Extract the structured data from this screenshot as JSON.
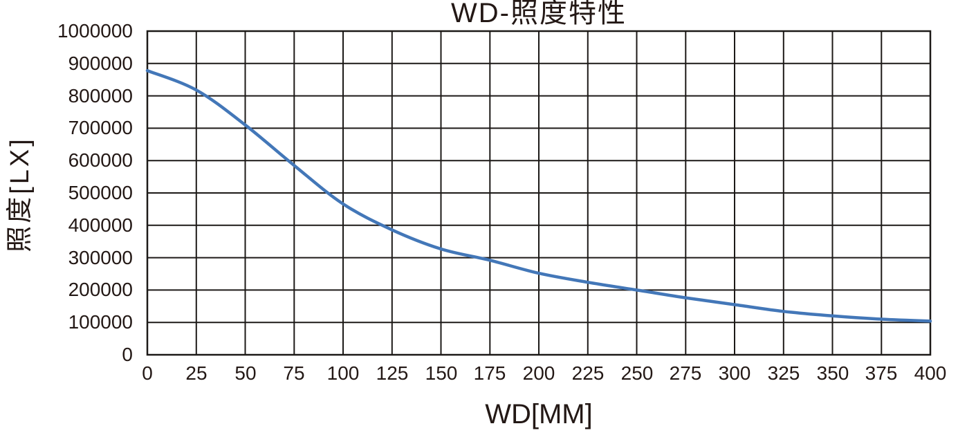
{
  "chart_data": {
    "type": "line",
    "title": "WD-照度特性",
    "xlabel": "WD[MM]",
    "ylabel": "照度[LX]",
    "xlim": [
      0,
      400
    ],
    "ylim": [
      0,
      1000000
    ],
    "x_ticks": [
      0,
      25,
      50,
      75,
      100,
      125,
      150,
      175,
      200,
      225,
      250,
      275,
      300,
      325,
      350,
      375,
      400
    ],
    "y_ticks": [
      0,
      100000,
      200000,
      300000,
      400000,
      500000,
      600000,
      700000,
      800000,
      900000,
      1000000
    ],
    "grid": "on",
    "legend": "none",
    "series": [
      {
        "style": "smooth-line",
        "color": "#4377b8",
        "x": [
          0,
          25,
          50,
          75,
          100,
          125,
          150,
          175,
          200,
          225,
          250,
          275,
          300,
          325,
          350,
          375,
          400
        ],
        "values": [
          878000,
          818000,
          710000,
          585000,
          466000,
          386000,
          327000,
          292000,
          252000,
          224000,
          200000,
          176000,
          155000,
          134000,
          120000,
          110000,
          104000
        ]
      }
    ]
  },
  "colors": {
    "background": "#ffffff",
    "grid": "#1c1917",
    "text": "#231815",
    "series_line": "#4377b8"
  }
}
